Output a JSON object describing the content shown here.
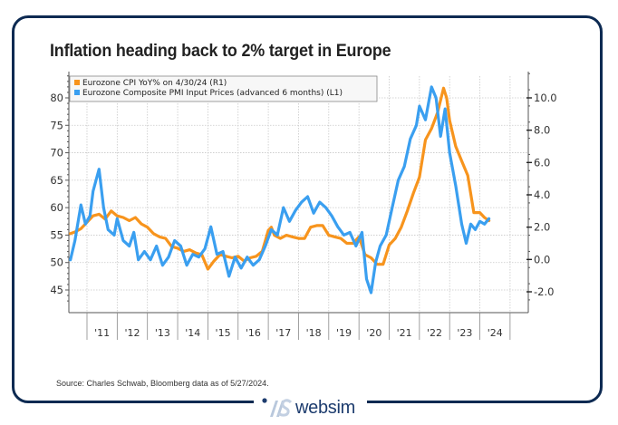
{
  "title": "Inflation heading back to 2% target in Europe",
  "source": "Source: Charles Schwab, Bloomberg data as of 5/27/2024.",
  "brand": {
    "name": "websim"
  },
  "colors": {
    "frame": "#0d2a52",
    "cpi": "#f7941d",
    "pmi": "#3a9ff0",
    "grid": "#c8c8c8"
  },
  "chart_data": {
    "type": "line",
    "title": "Inflation heading back to 2% target in Europe",
    "legend": {
      "placement": "top-left",
      "entries": [
        {
          "name": "Eurozone CPI YoY% on 4/30/24 (R1)",
          "color": "#f7941d"
        },
        {
          "name": "Eurozone Composite PMI Input Prices (advanced 6 months) (L1)",
          "color": "#3a9ff0"
        }
      ]
    },
    "x_ticks": [
      "'11",
      "'12",
      "'13",
      "'14",
      "'15",
      "'16",
      "'17",
      "'18",
      "'19",
      "'20",
      "'21",
      "'22",
      "'23",
      "'24"
    ],
    "x_range": [
      2010.4,
      2024.8
    ],
    "left_axis": {
      "ticks": [
        80,
        75,
        70,
        65,
        60,
        55,
        50,
        45
      ],
      "range": [
        42.5,
        84.5
      ]
    },
    "right_axis": {
      "ticks": [
        "10.0",
        "8.0",
        "6.0",
        "4.0",
        "2.0",
        "0.0",
        "-2.0"
      ],
      "range": [
        -2.5,
        11.8
      ]
    },
    "grid": true,
    "series": [
      {
        "name": "Eurozone CPI YoY% on 4/30/24 (R1)",
        "axis": "right",
        "x": [
          2010.45,
          2010.6,
          2010.8,
          2011.0,
          2011.2,
          2011.4,
          2011.6,
          2011.8,
          2012.0,
          2012.2,
          2012.4,
          2012.6,
          2012.8,
          2013.0,
          2013.2,
          2013.4,
          2013.6,
          2013.8,
          2014.0,
          2014.2,
          2014.4,
          2014.6,
          2014.8,
          2015.0,
          2015.2,
          2015.4,
          2015.6,
          2015.8,
          2016.0,
          2016.2,
          2016.4,
          2016.6,
          2016.8,
          2017.0,
          2017.1,
          2017.2,
          2017.4,
          2017.6,
          2017.8,
          2018.0,
          2018.2,
          2018.4,
          2018.6,
          2018.8,
          2019.0,
          2019.2,
          2019.4,
          2019.6,
          2019.8,
          2020.0,
          2020.2,
          2020.4,
          2020.6,
          2020.8,
          2021.0,
          2021.2,
          2021.4,
          2021.6,
          2021.8,
          2022.0,
          2022.2,
          2022.4,
          2022.6,
          2022.8,
          2022.9,
          2023.0,
          2023.2,
          2023.4,
          2023.6,
          2023.8,
          2024.0,
          2024.15,
          2024.3
        ],
        "values": [
          1.6,
          1.7,
          1.9,
          2.3,
          2.7,
          2.8,
          2.5,
          3.0,
          2.7,
          2.6,
          2.4,
          2.6,
          2.2,
          2.0,
          1.6,
          1.4,
          1.3,
          0.8,
          0.7,
          0.5,
          0.6,
          0.4,
          0.3,
          -0.6,
          -0.1,
          0.3,
          0.2,
          0.1,
          0.2,
          -0.1,
          0.1,
          0.2,
          0.5,
          1.8,
          2.0,
          1.5,
          1.3,
          1.5,
          1.4,
          1.3,
          1.3,
          2.0,
          2.1,
          2.1,
          1.5,
          1.4,
          1.3,
          1.0,
          1.0,
          1.4,
          0.3,
          0.1,
          -0.3,
          -0.3,
          0.9,
          1.3,
          2.0,
          3.0,
          4.1,
          5.1,
          7.4,
          8.1,
          9.1,
          10.6,
          10.0,
          8.6,
          7.0,
          6.1,
          5.2,
          2.9,
          2.9,
          2.6,
          2.4
        ]
      },
      {
        "name": "Eurozone Composite PMI Input Prices (advanced 6 months) (L1)",
        "axis": "left",
        "x": [
          2010.45,
          2010.6,
          2010.8,
          2010.95,
          2011.1,
          2011.2,
          2011.4,
          2011.55,
          2011.7,
          2011.9,
          2012.0,
          2012.2,
          2012.4,
          2012.55,
          2012.7,
          2012.9,
          2013.1,
          2013.3,
          2013.5,
          2013.7,
          2013.9,
          2014.1,
          2014.3,
          2014.5,
          2014.7,
          2014.9,
          2015.1,
          2015.3,
          2015.5,
          2015.7,
          2015.9,
          2016.1,
          2016.3,
          2016.5,
          2016.7,
          2016.9,
          2017.1,
          2017.3,
          2017.5,
          2017.7,
          2017.9,
          2018.1,
          2018.3,
          2018.5,
          2018.7,
          2018.9,
          2019.1,
          2019.3,
          2019.5,
          2019.7,
          2019.9,
          2020.1,
          2020.25,
          2020.4,
          2020.55,
          2020.7,
          2020.9,
          2021.1,
          2021.3,
          2021.5,
          2021.7,
          2021.9,
          2022.0,
          2022.2,
          2022.4,
          2022.55,
          2022.7,
          2022.85,
          2023.0,
          2023.2,
          2023.4,
          2023.55,
          2023.7,
          2023.85,
          2024.0,
          2024.15,
          2024.3
        ],
        "values": [
          50.5,
          54,
          60.5,
          57,
          58.5,
          63,
          67,
          60,
          56,
          55,
          58,
          54,
          53,
          55.5,
          50.5,
          52,
          50.5,
          53,
          49.5,
          51,
          54,
          53,
          49.5,
          51.5,
          51,
          52.5,
          56.5,
          51.5,
          52,
          47.5,
          51,
          49,
          51,
          49.5,
          50.5,
          53,
          56,
          55,
          60,
          57.5,
          59.5,
          61,
          62,
          59,
          61,
          60,
          58.5,
          56.5,
          55,
          55.5,
          53,
          55.5,
          47,
          44.5,
          50,
          53,
          55,
          60,
          65,
          67.5,
          72.5,
          75,
          78.5,
          76,
          82,
          80,
          73,
          78,
          70,
          64,
          57,
          53.5,
          57,
          56,
          57.5,
          57,
          58
        ]
      }
    ]
  }
}
